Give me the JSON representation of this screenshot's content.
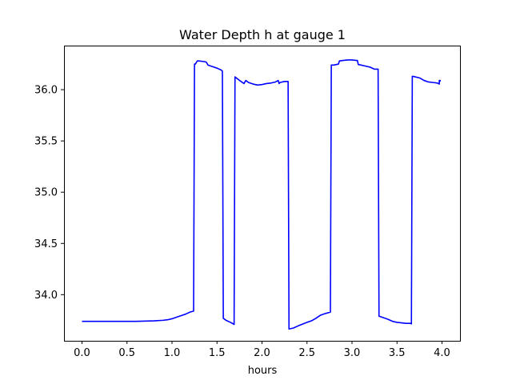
{
  "chart_data": {
    "type": "line",
    "title": "Water Depth h at gauge 1",
    "xlabel": "hours",
    "ylabel": "",
    "xlim": [
      -0.2,
      4.2
    ],
    "ylim": [
      33.55,
      36.43
    ],
    "xticks": [
      0.0,
      0.5,
      1.0,
      1.5,
      2.0,
      2.5,
      3.0,
      3.5,
      4.0
    ],
    "xtick_labels": [
      "0.0",
      "0.5",
      "1.0",
      "1.5",
      "2.0",
      "2.5",
      "3.0",
      "3.5",
      "4.0"
    ],
    "yticks": [
      34.0,
      34.5,
      35.0,
      35.5,
      36.0
    ],
    "ytick_labels": [
      "34.0",
      "34.5",
      "35.0",
      "35.5",
      "36.0"
    ],
    "grid": false,
    "series": [
      {
        "color": "#0000ff",
        "x": [
          0.0,
          0.3,
          0.6,
          0.8,
          0.9,
          0.95,
          1.0,
          1.05,
          1.1,
          1.15,
          1.2,
          1.24,
          1.25,
          1.26,
          1.28,
          1.29,
          1.3,
          1.35,
          1.38,
          1.4,
          1.45,
          1.5,
          1.55,
          1.56,
          1.57,
          1.6,
          1.65,
          1.69,
          1.7,
          1.75,
          1.8,
          1.82,
          1.85,
          1.9,
          1.95,
          2.0,
          2.05,
          2.1,
          2.15,
          2.18,
          2.19,
          2.2,
          2.25,
          2.29,
          2.3,
          2.35,
          2.4,
          2.5,
          2.55,
          2.6,
          2.65,
          2.7,
          2.76,
          2.77,
          2.8,
          2.85,
          2.86,
          2.9,
          2.95,
          3.0,
          3.05,
          3.06,
          3.07,
          3.1,
          3.15,
          3.2,
          3.25,
          3.29,
          3.3,
          3.35,
          3.4,
          3.45,
          3.5,
          3.55,
          3.6,
          3.65,
          3.66,
          3.67,
          3.68,
          3.7,
          3.75,
          3.8,
          3.85,
          3.9,
          3.95,
          3.97,
          3.97,
          3.98,
          3.98
        ],
        "y": [
          33.74,
          33.74,
          33.74,
          33.745,
          33.75,
          33.755,
          33.765,
          33.78,
          33.795,
          33.81,
          33.83,
          33.84,
          36.25,
          36.25,
          36.28,
          36.28,
          36.28,
          36.275,
          36.27,
          36.24,
          36.225,
          36.21,
          36.19,
          36.18,
          33.77,
          33.75,
          33.73,
          33.71,
          36.125,
          36.09,
          36.06,
          36.09,
          36.07,
          36.055,
          36.045,
          36.05,
          36.06,
          36.065,
          36.075,
          36.09,
          36.06,
          36.07,
          36.08,
          36.08,
          33.665,
          33.675,
          33.695,
          33.73,
          33.745,
          33.77,
          33.8,
          33.815,
          33.83,
          36.24,
          36.24,
          36.25,
          36.28,
          36.285,
          36.29,
          36.29,
          36.285,
          36.285,
          36.245,
          36.24,
          36.23,
          36.22,
          36.2,
          36.2,
          33.79,
          33.775,
          33.76,
          33.74,
          33.73,
          33.725,
          33.72,
          33.72,
          33.715,
          36.13,
          36.13,
          36.125,
          36.115,
          36.09,
          36.075,
          36.07,
          36.065,
          36.055,
          36.09,
          36.09,
          36.08
        ]
      }
    ]
  }
}
